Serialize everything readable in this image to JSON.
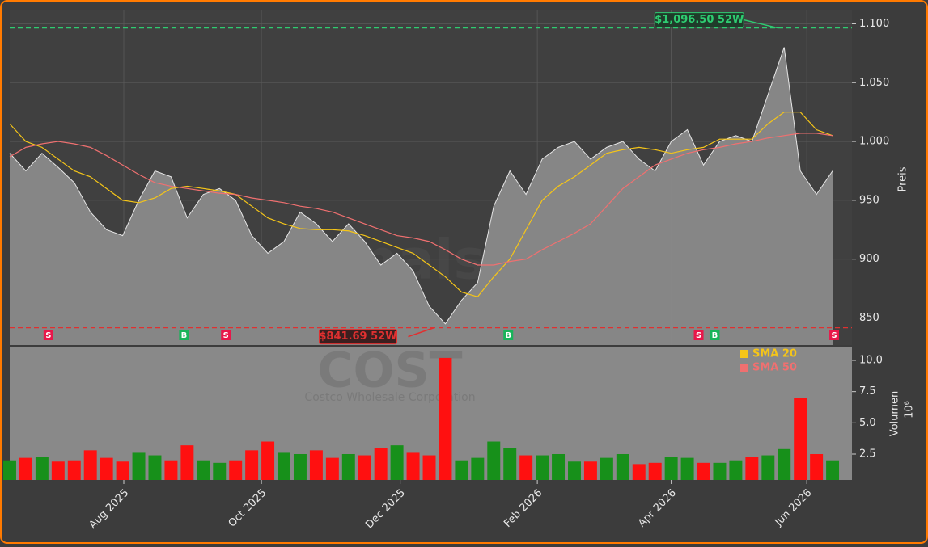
{
  "chart_data": {
    "type": "area",
    "categories": [
      null,
      null,
      null,
      null,
      null,
      null,
      null,
      null,
      null,
      null,
      null,
      null,
      null,
      null,
      null,
      null,
      null,
      null,
      null,
      null,
      null,
      null,
      null,
      null,
      null,
      null,
      null,
      null,
      null,
      null,
      null,
      null,
      null,
      null,
      null,
      null,
      null,
      null,
      null,
      null,
      null,
      null,
      null,
      null,
      null,
      null,
      null,
      null,
      null,
      null,
      null,
      null
    ],
    "xlim": [
      0,
      52.2
    ],
    "xticks": [
      {
        "value": 7.07,
        "label": "Aug 2025"
      },
      {
        "value": 15.6,
        "label": "Oct 2025"
      },
      {
        "value": 24.2,
        "label": "Dec 2025"
      },
      {
        "value": 32.7,
        "label": "Feb 2026"
      },
      {
        "value": 41.0,
        "label": "Apr 2026"
      },
      {
        "value": 49.4,
        "label": "Jun 2026"
      }
    ],
    "ylim": [
      827,
      1112
    ],
    "yticks": [
      850,
      900,
      950,
      {
        "value": 1000,
        "label": "1.000"
      },
      {
        "value": 1050,
        "label": "1.050"
      },
      {
        "value": 1100,
        "label": "1.100"
      }
    ],
    "ylabel": "Preis",
    "grid": true,
    "series": [
      {
        "name": "COST",
        "color": "#8a8a8a",
        "values": [
          990,
          975,
          990,
          978,
          965,
          940,
          925,
          920,
          950,
          975,
          970,
          935,
          955,
          960,
          950,
          920,
          905,
          915,
          940,
          930,
          915,
          930,
          915,
          895,
          905,
          890,
          860,
          845,
          865,
          880,
          945,
          975,
          955,
          985,
          995,
          1000,
          985,
          995,
          1000,
          985,
          975,
          1000,
          1010,
          980,
          1000,
          1005,
          1000,
          1040,
          1080,
          975,
          955,
          975
        ]
      },
      {
        "name": "SMA 20",
        "color": "#f5c518",
        "values": [
          1015,
          1000,
          995,
          985,
          975,
          970,
          960,
          950,
          948,
          952,
          960,
          962,
          960,
          958,
          955,
          945,
          935,
          930,
          926,
          925,
          925,
          924,
          920,
          915,
          910,
          905,
          895,
          885,
          872,
          868,
          885,
          900,
          925,
          950,
          962,
          970,
          980,
          990,
          993,
          995,
          993,
          990,
          993,
          995,
          1002,
          1002,
          1002,
          1015,
          1025,
          1025,
          1010,
          1005
        ]
      },
      {
        "name": "SMA 50",
        "color": "#f07070",
        "values": [
          987,
          995,
          998,
          1000,
          998,
          995,
          988,
          980,
          972,
          965,
          962,
          960,
          958,
          956,
          955,
          952,
          950,
          948,
          945,
          943,
          940,
          935,
          930,
          925,
          920,
          918,
          915,
          908,
          900,
          895,
          895,
          898,
          900,
          908,
          915,
          922,
          930,
          945,
          960,
          970,
          980,
          985,
          990,
          993,
          995,
          998,
          1000,
          1003,
          1005,
          1007,
          1007,
          1005
        ]
      }
    ],
    "volume": {
      "ylabel": "Volumen",
      "unit": "10⁶",
      "ylim": [
        0.43,
        11.1
      ],
      "yticks": [
        2.5,
        {
          "value": 5,
          "label": "5.0"
        },
        7.5,
        {
          "value": 10,
          "label": "10.0"
        }
      ],
      "up_color": "#17901a",
      "down_color": "#ff1010",
      "values": [
        2.0,
        2.2,
        2.3,
        1.9,
        2.0,
        2.8,
        2.2,
        1.9,
        2.6,
        2.4,
        2.0,
        3.2,
        2.0,
        1.8,
        2.0,
        2.8,
        3.5,
        2.6,
        2.5,
        2.8,
        2.2,
        2.5,
        2.4,
        3.0,
        3.2,
        2.6,
        2.4,
        10.2,
        2.0,
        2.2,
        3.5,
        3.0,
        2.4,
        2.4,
        2.5,
        1.9,
        1.9,
        2.2,
        2.5,
        1.7,
        1.8,
        2.3,
        2.2,
        1.8,
        1.8,
        2.0,
        2.3,
        2.4,
        2.9,
        7.0,
        2.5,
        2.0
      ]
    },
    "annotations": [
      {
        "value": 1096.5,
        "x": 47.6,
        "label": "$1,096.50 52W",
        "color": "#2ecc71"
      },
      {
        "value": 841.69,
        "x": 26.3,
        "label": "$841.69 52W",
        "color": "#e03030"
      }
    ],
    "signals": [
      {
        "x": 2.4,
        "label": "S"
      },
      {
        "x": 10.8,
        "label": "B"
      },
      {
        "x": 13.4,
        "label": "S"
      },
      {
        "x": 30.9,
        "label": "B"
      },
      {
        "x": 42.7,
        "label": "S"
      },
      {
        "x": 43.7,
        "label": "B"
      },
      {
        "x": 51.1,
        "label": "S"
      }
    ],
    "watermark": "forexsignals.trade",
    "symbol": "COST",
    "company": "Costco Wholesale Corporation",
    "legend": "upper right"
  }
}
